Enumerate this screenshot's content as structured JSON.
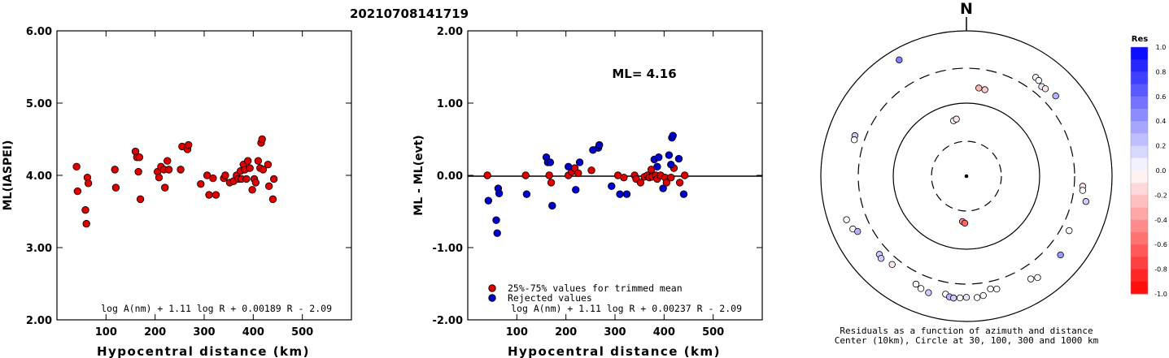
{
  "title": "20210708141719",
  "chart_data": [
    {
      "type": "scatter",
      "xlabel": "Hypocentral distance (km)",
      "ylabel": "ML(IASPEI)",
      "xlim": [
        0,
        600
      ],
      "ylim": [
        2.0,
        6.0
      ],
      "x_ticks": [
        "100",
        "200",
        "300",
        "400",
        "500"
      ],
      "y_ticks": [
        "2.00",
        "3.00",
        "4.00",
        "5.00",
        "6.00"
      ],
      "formula": "log A(nm) + 1.11 log R + 0.00189 R - 2.09",
      "series": [
        {
          "color": "#dd0000",
          "points": [
            [
              40,
              4.12
            ],
            [
              42,
              3.78
            ],
            [
              58,
              3.52
            ],
            [
              60,
              3.33
            ],
            [
              62,
              3.97
            ],
            [
              64,
              3.89
            ],
            [
              118,
              4.08
            ],
            [
              120,
              3.83
            ],
            [
              160,
              4.33
            ],
            [
              163,
              4.25
            ],
            [
              166,
              4.05
            ],
            [
              168,
              4.25
            ],
            [
              170,
              3.67
            ],
            [
              205,
              4.05
            ],
            [
              208,
              3.97
            ],
            [
              212,
              4.12
            ],
            [
              218,
              4.08
            ],
            [
              220,
              3.83
            ],
            [
              225,
              4.2
            ],
            [
              228,
              4.08
            ],
            [
              252,
              4.08
            ],
            [
              255,
              4.4
            ],
            [
              266,
              4.36
            ],
            [
              268,
              4.42
            ],
            [
              293,
              3.88
            ],
            [
              306,
              4.0
            ],
            [
              310,
              3.73
            ],
            [
              318,
              3.96
            ],
            [
              324,
              3.73
            ],
            [
              340,
              3.96
            ],
            [
              343,
              4.0
            ],
            [
              352,
              3.9
            ],
            [
              360,
              3.92
            ],
            [
              366,
              4.0
            ],
            [
              370,
              3.95
            ],
            [
              374,
              4.06
            ],
            [
              376,
              3.95
            ],
            [
              380,
              4.15
            ],
            [
              383,
              4.08
            ],
            [
              386,
              3.95
            ],
            [
              389,
              4.2
            ],
            [
              393,
              4.1
            ],
            [
              398,
              3.8
            ],
            [
              402,
              3.95
            ],
            [
              405,
              3.9
            ],
            [
              410,
              4.2
            ],
            [
              414,
              4.1
            ],
            [
              416,
              4.45
            ],
            [
              418,
              4.5
            ],
            [
              420,
              4.08
            ],
            [
              430,
              4.15
            ],
            [
              432,
              3.85
            ],
            [
              440,
              3.67
            ],
            [
              442,
              3.95
            ]
          ]
        }
      ]
    },
    {
      "type": "scatter",
      "xlabel": "Hypocentral distance (km)",
      "ylabel": "ML - ML(evt)",
      "xlim": [
        0,
        600
      ],
      "ylim": [
        -2.0,
        2.0
      ],
      "x_ticks": [
        "100",
        "200",
        "300",
        "400",
        "500"
      ],
      "y_ticks": [
        "-2.00",
        "-1.00",
        "0.00",
        "1.00",
        "2.00"
      ],
      "annotation": "ML= 4.16",
      "formula": "log A(nm) + 1.11 log R + 0.00237 R - 2.09",
      "legend": [
        {
          "label": "25%-75% values for trimmed mean",
          "color": "#dd0000"
        },
        {
          "label": "Rejected values",
          "color": "#0000cc"
        }
      ],
      "series": [
        {
          "name": "25%-75% values for trimmed mean",
          "color": "#dd0000",
          "points": [
            [
              40,
              0.0
            ],
            [
              118,
              0.0
            ],
            [
              166,
              0.0
            ],
            [
              170,
              -0.1
            ],
            [
              205,
              0.0
            ],
            [
              212,
              0.05
            ],
            [
              218,
              0.1
            ],
            [
              225,
              0.03
            ],
            [
              252,
              0.07
            ],
            [
              306,
              0.0
            ],
            [
              318,
              -0.03
            ],
            [
              340,
              0.0
            ],
            [
              343,
              -0.05
            ],
            [
              352,
              -0.1
            ],
            [
              360,
              -0.02
            ],
            [
              366,
              0.0
            ],
            [
              370,
              -0.03
            ],
            [
              374,
              0.08
            ],
            [
              376,
              -0.02
            ],
            [
              383,
              0.0
            ],
            [
              386,
              -0.05
            ],
            [
              393,
              0.0
            ],
            [
              402,
              -0.03
            ],
            [
              405,
              -0.1
            ],
            [
              414,
              -0.03
            ],
            [
              420,
              0.1
            ],
            [
              432,
              -0.1
            ],
            [
              442,
              0.0
            ]
          ]
        },
        {
          "name": "Rejected values",
          "color": "#0000cc",
          "points": [
            [
              42,
              -0.35
            ],
            [
              58,
              -0.62
            ],
            [
              60,
              -0.8
            ],
            [
              62,
              -0.18
            ],
            [
              64,
              -0.25
            ],
            [
              120,
              -0.26
            ],
            [
              160,
              0.25
            ],
            [
              163,
              0.18
            ],
            [
              168,
              0.18
            ],
            [
              172,
              -0.42
            ],
            [
              205,
              0.12
            ],
            [
              220,
              -0.2
            ],
            [
              228,
              0.18
            ],
            [
              255,
              0.35
            ],
            [
              266,
              0.38
            ],
            [
              268,
              0.42
            ],
            [
              293,
              -0.15
            ],
            [
              310,
              -0.26
            ],
            [
              324,
              -0.26
            ],
            [
              380,
              0.22
            ],
            [
              386,
              0.12
            ],
            [
              389,
              0.25
            ],
            [
              398,
              -0.18
            ],
            [
              410,
              0.28
            ],
            [
              414,
              0.15
            ],
            [
              416,
              0.52
            ],
            [
              418,
              0.55
            ],
            [
              430,
              0.23
            ],
            [
              440,
              -0.26
            ]
          ]
        }
      ]
    },
    {
      "type": "scatter",
      "projection": "polar-azimuth-distance",
      "north_label": "N",
      "caption_line1": "Residuals as a function of azimuth and distance",
      "caption_line2": "Center (10km), Circle at 30, 100, 300 and 1000 km",
      "colorbar": {
        "title": "Res",
        "range": [
          -1.0,
          1.0
        ],
        "tick_labels": [
          "1.0",
          "0.8",
          "0.6",
          "0.4",
          "0.2",
          "0.0",
          "-0.2",
          "-0.4",
          "-0.6",
          "-0.8",
          "-1.0"
        ],
        "positive_color": "#0000ff",
        "negative_color": "#ff0000"
      },
      "points": [
        {
          "az": 347,
          "dist_km": 60,
          "res": 0.0
        },
        {
          "az": 350,
          "dist_km": 62,
          "res": -0.1
        },
        {
          "az": 185,
          "dist_km": 42,
          "res": -0.5
        },
        {
          "az": 182,
          "dist_km": 44,
          "res": -0.6
        },
        {
          "az": 35,
          "dist_km": 450,
          "res": 0.0
        },
        {
          "az": 37,
          "dist_km": 440,
          "res": 0.0
        },
        {
          "az": 40,
          "dist_km": 400,
          "res": 0.1
        },
        {
          "az": 42,
          "dist_km": 410,
          "res": -0.1
        },
        {
          "az": 48,
          "dist_km": 440,
          "res": 0.3
        },
        {
          "az": 8,
          "dist_km": 165,
          "res": -0.3
        },
        {
          "az": 12,
          "dist_km": 162,
          "res": -0.2
        },
        {
          "az": 330,
          "dist_km": 700,
          "res": 0.5
        },
        {
          "az": 290,
          "dist_km": 420,
          "res": 0.2
        },
        {
          "az": 288,
          "dist_km": 410,
          "res": 0.0
        },
        {
          "az": 95,
          "dist_km": 395,
          "res": -0.1
        },
        {
          "az": 97,
          "dist_km": 400,
          "res": 0.0
        },
        {
          "az": 102,
          "dist_km": 470,
          "res": 0.2
        },
        {
          "az": 118,
          "dist_km": 390,
          "res": 0.0
        },
        {
          "az": 250,
          "dist_km": 560,
          "res": 0.0
        },
        {
          "az": 245,
          "dist_km": 520,
          "res": 0.0
        },
        {
          "az": 243,
          "dist_km": 470,
          "res": 0.3
        },
        {
          "az": 228,
          "dist_km": 400,
          "res": 0.2
        },
        {
          "az": 226,
          "dist_km": 420,
          "res": 0.2
        },
        {
          "az": 220,
          "dist_km": 380,
          "res": -0.1
        },
        {
          "az": 205,
          "dist_km": 430,
          "res": 0.0
        },
        {
          "az": 202,
          "dist_km": 460,
          "res": 0.0
        },
        {
          "az": 198,
          "dist_km": 480,
          "res": 0.2
        },
        {
          "az": 190,
          "dist_km": 440,
          "res": 0.0
        },
        {
          "az": 188,
          "dist_km": 470,
          "res": 0.3
        },
        {
          "az": 186,
          "dist_km": 480,
          "res": 0.2
        },
        {
          "az": 183,
          "dist_km": 470,
          "res": 0.0
        },
        {
          "az": 180,
          "dist_km": 460,
          "res": 0.1
        },
        {
          "az": 175,
          "dist_km": 470,
          "res": 0.0
        },
        {
          "az": 172,
          "dist_km": 450,
          "res": 0.0
        },
        {
          "az": 168,
          "dist_km": 380,
          "res": 0.0
        },
        {
          "az": 165,
          "dist_km": 400,
          "res": 0.0
        },
        {
          "az": 145,
          "dist_km": 500,
          "res": 0.0
        },
        {
          "az": 148,
          "dist_km": 460,
          "res": 0.0
        },
        {
          "az": 130,
          "dist_km": 480,
          "res": 0.4
        }
      ]
    }
  ]
}
